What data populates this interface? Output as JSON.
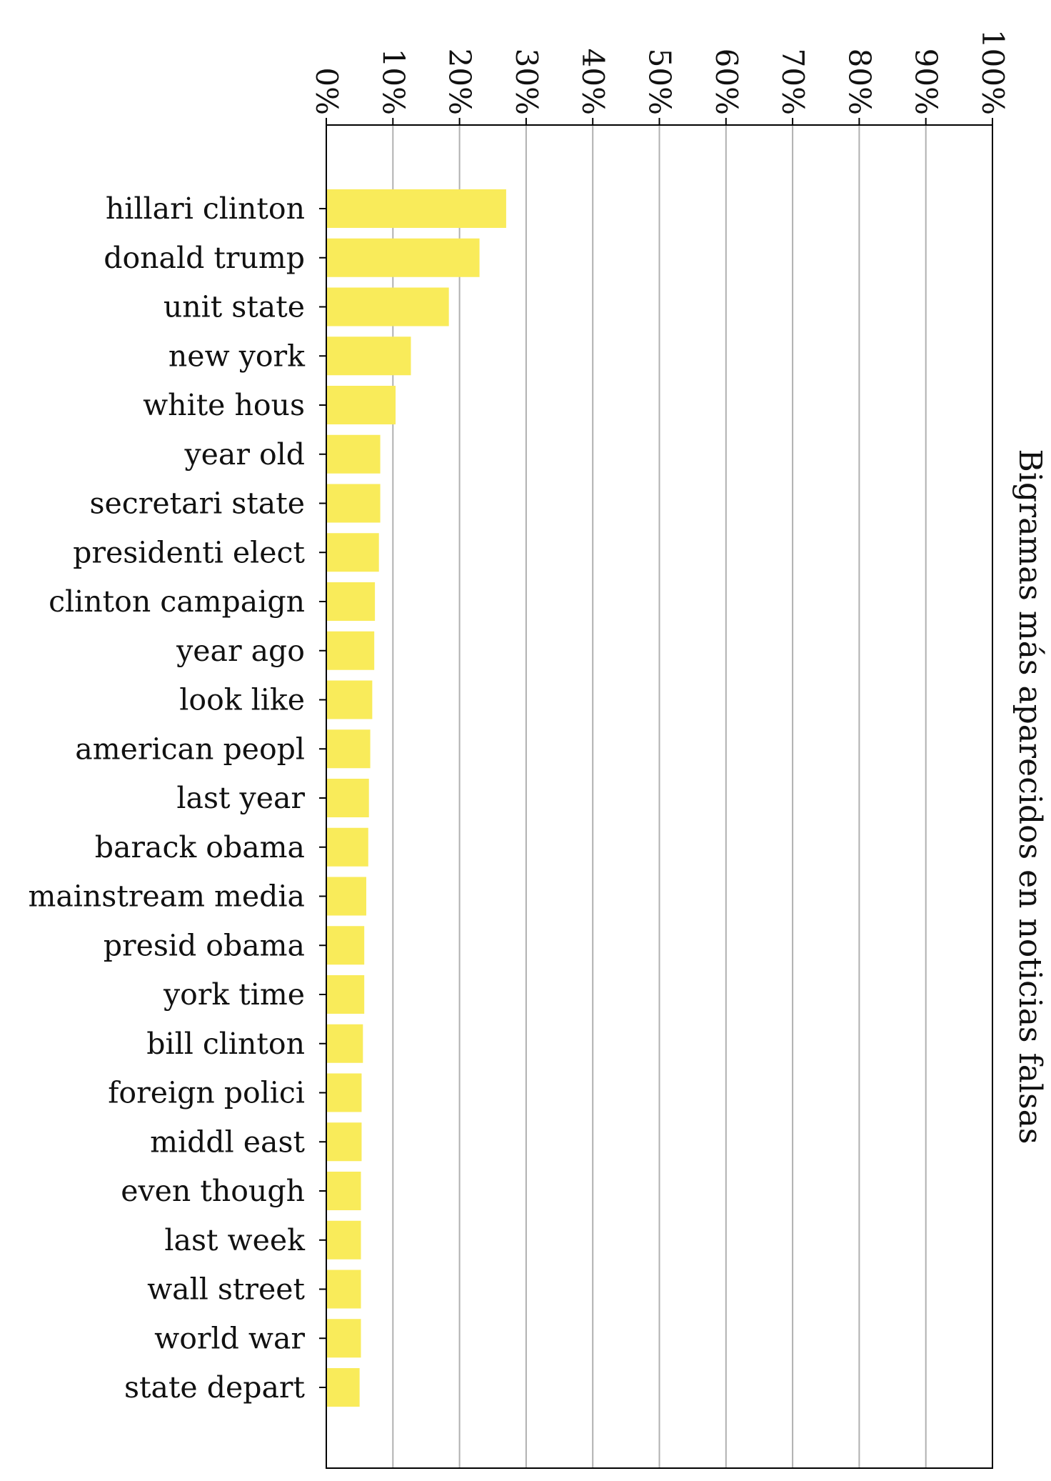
{
  "chart_data": {
    "type": "bar",
    "orientation": "horizontal",
    "title": "",
    "ylabel": "",
    "xlabel": "Bigramas más aparecidos en noticias falsas",
    "xlim": [
      0,
      100
    ],
    "x_ticks": [
      "0%",
      "10%",
      "20%",
      "30%",
      "40%",
      "50%",
      "60%",
      "70%",
      "80%",
      "90%",
      "100%"
    ],
    "grid": "vertical",
    "bar_color": "#f9eb5a",
    "categories": [
      "hillari clinton",
      "donald trump",
      "unit state",
      "new york",
      "white hous",
      "year old",
      "secretari state",
      "presidenti elect",
      "clinton campaign",
      "year ago",
      "look like",
      "american peopl",
      "last year",
      "barack obama",
      "mainstream media",
      "presid obama",
      "york time",
      "bill clinton",
      "foreign polici",
      "middl east",
      "even though",
      "last week",
      "wall street",
      "world war",
      "state depart"
    ],
    "values": [
      27.0,
      23.0,
      18.4,
      12.7,
      10.4,
      8.1,
      8.1,
      7.9,
      7.3,
      7.2,
      6.9,
      6.6,
      6.4,
      6.3,
      6.0,
      5.7,
      5.7,
      5.5,
      5.3,
      5.3,
      5.2,
      5.2,
      5.2,
      5.2,
      5.0
    ]
  }
}
